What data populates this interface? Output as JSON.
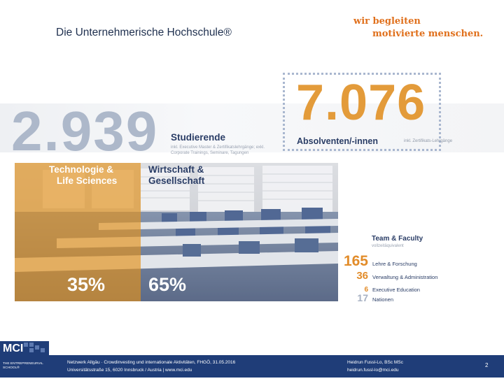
{
  "header": {
    "title": "Die Unternehmerische Hochschule®",
    "slogan_line1": "wir begleiten",
    "slogan_line2": "motivierte menschen."
  },
  "graduates": {
    "number": "7.076",
    "label": "Absolventen/-innen",
    "note": "inkl. Zertifikats-Lehrgänge"
  },
  "students": {
    "number": "2.939",
    "label": "Studierende",
    "note": "inkl. Executive Master & Zertifikatslehrgänge; exkl. Corporate Trainings, Seminare, Tagungen"
  },
  "departments": {
    "left_line1": "Technologie &",
    "left_line2": "Life Sciences",
    "right_line1": "Wirtschaft &",
    "right_line2": "Gesellschaft",
    "left_pct": "35%",
    "right_pct": "65%"
  },
  "team": {
    "title": "Team & Faculty",
    "subtitle": "vollzeitäquivalent",
    "rows": [
      {
        "num": "165",
        "label": "Lehre & Forschung"
      },
      {
        "num": "36",
        "label": "Verwaltung & Administration"
      },
      {
        "num": "6",
        "label": "Executive Education"
      },
      {
        "num": "17",
        "label": "Nationen"
      }
    ]
  },
  "footer": {
    "left_line1": "Netzwerk Allgäu · Crowdinvesting und internationale Aktivitäten, FHGÖ, 31.05.2016",
    "left_line2": "Universitätsstraße 15, 6020 Innsbruck / Austria | www.mci.edu",
    "right_line1": "Heidrun Fussl-Lo, BSc MSc",
    "right_line2": "heidrun.fussl-lo@mci.edu",
    "page": "2"
  },
  "logo": {
    "mark": "MCI",
    "tagline": "THE ENTREPRENEURIAL SCHOOL®"
  },
  "colors": {
    "navy": "#1f3d78",
    "orange": "#e0701c",
    "gold": "#e39b3a",
    "grey_number": "#adb8ca"
  }
}
